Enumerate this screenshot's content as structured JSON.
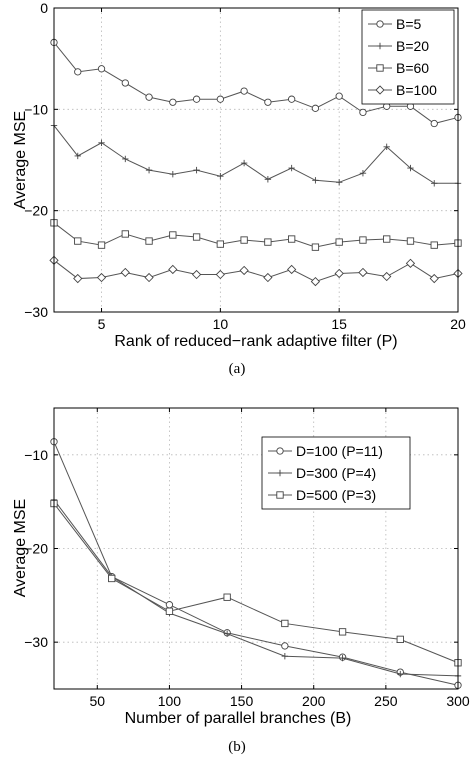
{
  "chart_data": [
    {
      "type": "line",
      "panel": "a",
      "caption": "(a)",
      "xlabel": "Rank of reduced−rank adaptive filter (P)",
      "ylabel": "Average MSE",
      "xlim": [
        3,
        20
      ],
      "ylim": [
        -30,
        0
      ],
      "xticks": [
        5,
        10,
        15,
        20
      ],
      "yticks": [
        0,
        -10,
        -20,
        -30
      ],
      "ytick_labels": [
        "0",
        "−10",
        "−20",
        "−30"
      ],
      "grid": true,
      "legend_position": "top-right",
      "x": [
        3,
        4,
        5,
        6,
        7,
        8,
        9,
        10,
        11,
        12,
        13,
        14,
        15,
        16,
        17,
        18,
        19,
        20
      ],
      "series": [
        {
          "name": "B=5",
          "marker": "circle",
          "values": [
            -3.4,
            -6.3,
            -6.0,
            -7.4,
            -8.8,
            -9.3,
            -9.0,
            -9.0,
            -8.2,
            -9.3,
            -9.0,
            -9.9,
            -8.7,
            -10.3,
            -9.7,
            -9.7,
            -11.4,
            -10.8
          ]
        },
        {
          "name": "B=20",
          "marker": "plus",
          "values": [
            -11.6,
            -14.6,
            -13.3,
            -14.9,
            -16.0,
            -16.4,
            -16.0,
            -16.6,
            -15.3,
            -16.9,
            -15.8,
            -17.0,
            -17.2,
            -16.3,
            -13.7,
            -15.8,
            -17.3,
            -17.3
          ]
        },
        {
          "name": "B=60",
          "marker": "square",
          "values": [
            -21.2,
            -23.0,
            -23.4,
            -22.3,
            -23.0,
            -22.4,
            -22.6,
            -23.3,
            -22.9,
            -23.1,
            -22.8,
            -23.6,
            -23.1,
            -22.9,
            -22.8,
            -23.0,
            -23.4,
            -23.2
          ]
        },
        {
          "name": "B=100",
          "marker": "diamond",
          "values": [
            -24.9,
            -26.7,
            -26.6,
            -26.1,
            -26.6,
            -25.8,
            -26.3,
            -26.3,
            -25.9,
            -26.6,
            -25.8,
            -27.0,
            -26.2,
            -26.1,
            -26.5,
            -25.2,
            -26.7,
            -26.2
          ]
        }
      ]
    },
    {
      "type": "line",
      "panel": "b",
      "caption": "(b)",
      "xlabel": "Number of parallel branches (B)",
      "ylabel": "Average MSE",
      "xlim": [
        20,
        300
      ],
      "ylim": [
        -35,
        -5
      ],
      "xticks": [
        50,
        100,
        150,
        200,
        250,
        300
      ],
      "yticks": [
        -10,
        -20,
        -30
      ],
      "ytick_labels": [
        "−10",
        "−20",
        "−30"
      ],
      "grid": true,
      "legend_position": "upper-middle-right",
      "x": [
        20,
        60,
        100,
        140,
        180,
        220,
        260,
        300
      ],
      "series": [
        {
          "name": "D=100 (P=11)",
          "marker": "circle",
          "values": [
            -8.6,
            -23.0,
            -26.0,
            -29.0,
            -30.4,
            -31.6,
            -33.2,
            -34.6
          ]
        },
        {
          "name": "D=300 (P=4)",
          "marker": "plus",
          "values": [
            -14.8,
            -23.0,
            -26.9,
            -29.1,
            -31.5,
            -31.7,
            -33.4,
            -33.6
          ]
        },
        {
          "name": "D=500 (P=3)",
          "marker": "square",
          "values": [
            -15.2,
            -23.2,
            -26.7,
            -25.2,
            -28.0,
            -28.9,
            -29.7,
            -32.2
          ]
        }
      ]
    }
  ]
}
